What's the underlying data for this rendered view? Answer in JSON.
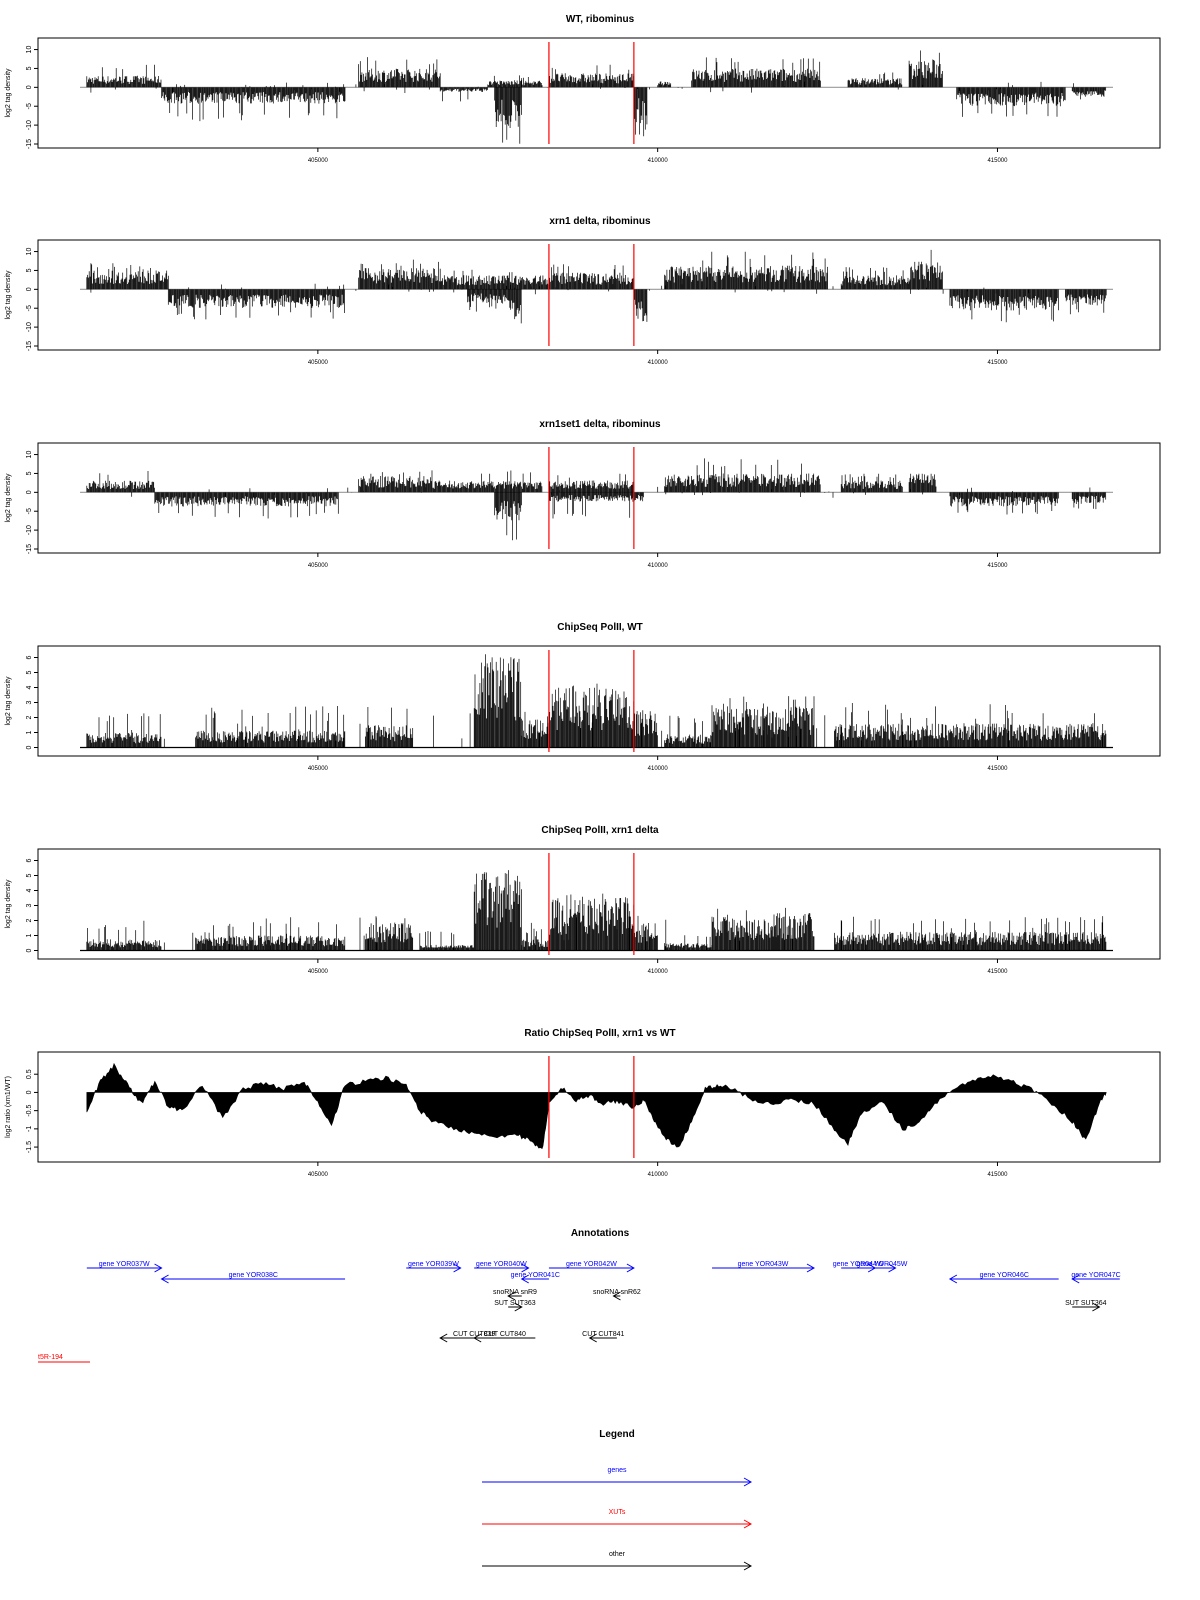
{
  "figure": {
    "region_label": "t5R-194",
    "colors": {
      "gene": "#0000ff",
      "xut": "#ff0000",
      "other": "#000000",
      "marker": "#ff0000",
      "axis": "#000000",
      "baseline": "#999999"
    }
  },
  "chart_data": [
    {
      "type": "bar",
      "title": "WT, ribominus",
      "ylabel": "log2 tag density",
      "xlim": [
        401500,
        416700
      ],
      "ylim": [
        -15,
        12
      ],
      "yticks": [
        10,
        5,
        0,
        -5,
        -10,
        -15
      ],
      "xticks": [
        405000,
        410000,
        415000
      ],
      "markers_x": [
        408400,
        409650
      ],
      "style": "stranded",
      "segments": [
        {
          "x": [
            401600,
            402700
          ],
          "amp": 2.5,
          "peak": 6
        },
        {
          "x": [
            402700,
            405400
          ],
          "amp": -3.5,
          "peak": -9
        },
        {
          "x": [
            405600,
            406800
          ],
          "amp": 4,
          "peak": 8
        },
        {
          "x": [
            406800,
            407500
          ],
          "amp": -1,
          "peak": -4
        },
        {
          "x": [
            407500,
            408000
          ],
          "amp": 1.5,
          "peak": 4
        },
        {
          "x": [
            407600,
            408000
          ],
          "amp": -9,
          "peak": -15
        },
        {
          "x": [
            408000,
            408300
          ],
          "amp": 1.5,
          "peak": 3
        },
        {
          "x": [
            408400,
            409650
          ],
          "amp": 3,
          "peak": 6
        },
        {
          "x": [
            409650,
            409850
          ],
          "amp": -8,
          "peak": -13
        },
        {
          "x": [
            410000,
            410200
          ],
          "amp": 1.5,
          "peak": 4
        },
        {
          "x": [
            410500,
            412400
          ],
          "amp": 4,
          "peak": 8
        },
        {
          "x": [
            412800,
            413600
          ],
          "amp": 2,
          "peak": 4
        },
        {
          "x": [
            413700,
            414200
          ],
          "amp": 6,
          "peak": 10
        },
        {
          "x": [
            414400,
            416000
          ],
          "amp": -4,
          "peak": -9
        },
        {
          "x": [
            416100,
            416600
          ],
          "amp": -2,
          "peak": -4
        }
      ]
    },
    {
      "type": "bar",
      "title": "xrn1 delta, ribominus",
      "ylabel": "log2 tag density",
      "xlim": [
        401500,
        416700
      ],
      "ylim": [
        -15,
        12
      ],
      "yticks": [
        10,
        5,
        0,
        -5,
        -10,
        -15
      ],
      "xticks": [
        405000,
        410000,
        415000
      ],
      "markers_x": [
        408400,
        409650
      ],
      "style": "stranded",
      "segments": [
        {
          "x": [
            401600,
            402800
          ],
          "amp": 4,
          "peak": 7
        },
        {
          "x": [
            402800,
            405400
          ],
          "amp": -4,
          "peak": -8
        },
        {
          "x": [
            405600,
            406800
          ],
          "amp": 4.5,
          "peak": 8
        },
        {
          "x": [
            406800,
            408400
          ],
          "amp": 3,
          "peak": 6
        },
        {
          "x": [
            407200,
            407800
          ],
          "amp": -3,
          "peak": -6
        },
        {
          "x": [
            407800,
            408000
          ],
          "amp": -8,
          "peak": -13
        },
        {
          "x": [
            408400,
            409650
          ],
          "amp": 3.5,
          "peak": 7
        },
        {
          "x": [
            409650,
            409850
          ],
          "amp": -7,
          "peak": -12
        },
        {
          "x": [
            410100,
            412500
          ],
          "amp": 5,
          "peak": 10
        },
        {
          "x": [
            412700,
            413700
          ],
          "amp": 3,
          "peak": 6
        },
        {
          "x": [
            413700,
            414200
          ],
          "amp": 6,
          "peak": 11
        },
        {
          "x": [
            414300,
            415900
          ],
          "amp": -4.5,
          "peak": -9
        },
        {
          "x": [
            416000,
            416600
          ],
          "amp": -3.5,
          "peak": -7
        }
      ]
    },
    {
      "type": "bar",
      "title": "xrn1set1 delta, ribominus",
      "ylabel": "log2 tag density",
      "xlim": [
        401500,
        416700
      ],
      "ylim": [
        -15,
        12
      ],
      "yticks": [
        10,
        5,
        0,
        -5,
        -10,
        -15
      ],
      "xticks": [
        405000,
        410000,
        415000
      ],
      "markers_x": [
        408400,
        409650
      ],
      "style": "stranded",
      "segments": [
        {
          "x": [
            401600,
            402600
          ],
          "amp": 2.5,
          "peak": 6
        },
        {
          "x": [
            402600,
            405300
          ],
          "amp": -3,
          "peak": -7
        },
        {
          "x": [
            405600,
            406700
          ],
          "amp": 3.5,
          "peak": 6
        },
        {
          "x": [
            406700,
            408300
          ],
          "amp": 2.5,
          "peak": 6
        },
        {
          "x": [
            407600,
            408000
          ],
          "amp": -6,
          "peak": -13
        },
        {
          "x": [
            408400,
            409650
          ],
          "amp": 2.5,
          "peak": 5
        },
        {
          "x": [
            408400,
            409800
          ],
          "amp": -2,
          "peak": -7
        },
        {
          "x": [
            410100,
            412400
          ],
          "amp": 4,
          "peak": 9
        },
        {
          "x": [
            412700,
            413600
          ],
          "amp": 2.5,
          "peak": 5
        },
        {
          "x": [
            413700,
            414100
          ],
          "amp": 4,
          "peak": 8
        },
        {
          "x": [
            414300,
            415900
          ],
          "amp": -3,
          "peak": -6
        },
        {
          "x": [
            416100,
            416600
          ],
          "amp": -2.5,
          "peak": -5
        }
      ]
    },
    {
      "type": "bar",
      "title": "ChipSeq PolII, WT",
      "ylabel": "log2 tag density",
      "xlim": [
        401500,
        416700
      ],
      "ylim": [
        -0.3,
        6.5
      ],
      "yticks": [
        0,
        1,
        2,
        3,
        4,
        5,
        6
      ],
      "xticks": [
        405000,
        410000,
        415000
      ],
      "markers_x": [
        408400,
        409650
      ],
      "style": "positive",
      "segments": [
        {
          "x": [
            401600,
            402700
          ],
          "amp": 0.8,
          "peak": 2.5
        },
        {
          "x": [
            403200,
            405400
          ],
          "amp": 0.9,
          "peak": 2.8
        },
        {
          "x": [
            405700,
            406400
          ],
          "amp": 1.2,
          "peak": 2.8
        },
        {
          "x": [
            407300,
            408000
          ],
          "amp": 5,
          "peak": 6.1
        },
        {
          "x": [
            408000,
            408400
          ],
          "amp": 1.5,
          "peak": 2.5
        },
        {
          "x": [
            408400,
            409650
          ],
          "amp": 3.2,
          "peak": 4.3
        },
        {
          "x": [
            409650,
            410000
          ],
          "amp": 2,
          "peak": 3
        },
        {
          "x": [
            410100,
            410800
          ],
          "amp": 0.7,
          "peak": 2
        },
        {
          "x": [
            410800,
            412300
          ],
          "amp": 2.2,
          "peak": 3.5
        },
        {
          "x": [
            412600,
            416600
          ],
          "amp": 1.3,
          "peak": 3
        }
      ]
    },
    {
      "type": "bar",
      "title": "ChipSeq PolII, xrn1 delta",
      "ylabel": "log2 tag density",
      "xlim": [
        401500,
        416700
      ],
      "ylim": [
        -0.3,
        6.5
      ],
      "yticks": [
        0,
        1,
        2,
        3,
        4,
        5,
        6
      ],
      "xticks": [
        405000,
        410000,
        415000
      ],
      "markers_x": [
        408400,
        409650
      ],
      "style": "positive",
      "segments": [
        {
          "x": [
            401600,
            402700
          ],
          "amp": 0.6,
          "peak": 1.8
        },
        {
          "x": [
            403200,
            405400
          ],
          "amp": 0.8,
          "peak": 2
        },
        {
          "x": [
            405700,
            406400
          ],
          "amp": 1.5,
          "peak": 2.7
        },
        {
          "x": [
            406500,
            407300
          ],
          "amp": 0.3,
          "peak": 1.3
        },
        {
          "x": [
            407300,
            408000
          ],
          "amp": 4.3,
          "peak": 5.2
        },
        {
          "x": [
            408000,
            408400
          ],
          "amp": 0.6,
          "peak": 1.5
        },
        {
          "x": [
            408400,
            409650
          ],
          "amp": 2.8,
          "peak": 4
        },
        {
          "x": [
            409650,
            410000
          ],
          "amp": 1.5,
          "peak": 2.5
        },
        {
          "x": [
            410100,
            410800
          ],
          "amp": 0.4,
          "peak": 1.2
        },
        {
          "x": [
            410800,
            412300
          ],
          "amp": 2,
          "peak": 3
        },
        {
          "x": [
            412600,
            416600
          ],
          "amp": 1,
          "peak": 2.3
        }
      ]
    },
    {
      "type": "area",
      "title": "Ratio ChipSeq PolII, xrn1 vs WT",
      "ylabel": "log2 ratio (xrn1/WT)",
      "xlim": [
        401500,
        416700
      ],
      "ylim": [
        -1.8,
        1.0
      ],
      "yticks": [
        0.5,
        0.0,
        -0.5,
        -1.0,
        -1.5
      ],
      "xticks": [
        405000,
        410000,
        415000
      ],
      "markers_x": [
        408400,
        409650
      ],
      "style": "ratio",
      "x": [
        401600,
        401800,
        402000,
        402200,
        402400,
        402600,
        402800,
        403000,
        403300,
        403600,
        403900,
        404200,
        404500,
        404800,
        405000,
        405200,
        405400,
        405700,
        406000,
        406300,
        406500,
        406700,
        407000,
        407300,
        407600,
        407900,
        408100,
        408300,
        408400,
        408600,
        408800,
        409000,
        409200,
        409400,
        409650,
        409800,
        409950,
        410100,
        410300,
        410500,
        410700,
        410900,
        411100,
        411400,
        411700,
        412000,
        412300,
        412600,
        412800,
        413000,
        413300,
        413600,
        413800,
        414000,
        414300,
        414600,
        414900,
        415200,
        415500,
        415800,
        416100,
        416300,
        416500,
        416600
      ],
      "y": [
        -0.5,
        0.3,
        0.75,
        0.2,
        -0.3,
        0.3,
        -0.4,
        -0.5,
        0.2,
        -0.7,
        0.1,
        0.25,
        0.1,
        0.3,
        -0.3,
        -0.9,
        0.2,
        0.3,
        0.4,
        0.2,
        -0.5,
        -0.8,
        -1.0,
        -1.1,
        -1.2,
        -1.15,
        -1.3,
        -1.6,
        -0.3,
        0.1,
        -0.2,
        -0.1,
        -0.3,
        -0.25,
        -0.4,
        -0.2,
        -0.8,
        -1.2,
        -1.55,
        -0.8,
        0.1,
        0.2,
        0.1,
        -0.2,
        -0.3,
        -0.2,
        -0.3,
        -1.0,
        -1.4,
        -0.6,
        -0.2,
        -1.0,
        -0.9,
        -0.5,
        0.05,
        0.3,
        0.45,
        0.3,
        0.1,
        -0.3,
        -0.8,
        -1.3,
        -0.3,
        0.0
      ]
    }
  ],
  "annotations": {
    "title": "Annotations",
    "items": [
      {
        "label": "gene YOR037W",
        "kind": "gene",
        "dir": "right",
        "row": 1,
        "x0": 401600,
        "x1": 402700
      },
      {
        "label": "gene YOR038C",
        "kind": "gene",
        "dir": "left",
        "row": 2,
        "x0": 402700,
        "x1": 405400
      },
      {
        "label": "gene YOR039W",
        "kind": "gene",
        "dir": "right",
        "row": 1,
        "x0": 406300,
        "x1": 407100
      },
      {
        "label": "gene YOR040W",
        "kind": "gene",
        "dir": "right",
        "row": 1,
        "x0": 407300,
        "x1": 408100
      },
      {
        "label": "gene YOR041C",
        "kind": "gene",
        "dir": "left",
        "row": 2,
        "x0": 408000,
        "x1": 408400
      },
      {
        "label": "gene YOR042W",
        "kind": "gene",
        "dir": "right",
        "row": 1,
        "x0": 408400,
        "x1": 409650
      },
      {
        "label": "gene YOR043W",
        "kind": "gene",
        "dir": "right",
        "row": 1,
        "x0": 410800,
        "x1": 412300
      },
      {
        "label": "gene YOR044W",
        "kind": "gene",
        "dir": "right",
        "row": 1,
        "x0": 412700,
        "x1": 413200
      },
      {
        "label": "gene YOR045W",
        "kind": "gene",
        "dir": "right",
        "row": 1,
        "x0": 413100,
        "x1": 413500
      },
      {
        "label": "gene YOR046C",
        "kind": "gene",
        "dir": "left",
        "row": 2,
        "x0": 414300,
        "x1": 415900
      },
      {
        "label": "gene YOR047C",
        "kind": "gene",
        "dir": "left",
        "row": 2,
        "x0": 416100,
        "x1": 416800
      },
      {
        "label": "snoRNA snR9",
        "kind": "other",
        "dir": "left",
        "row": 3,
        "x0": 407800,
        "x1": 408000
      },
      {
        "label": "SUT SUT363",
        "kind": "other",
        "dir": "right",
        "row": 4,
        "x0": 407800,
        "x1": 408000
      },
      {
        "label": "snoRNA snR62",
        "kind": "other",
        "dir": "left",
        "row": 3,
        "x0": 409350,
        "x1": 409450
      },
      {
        "label": "SUT SUT364",
        "kind": "other",
        "dir": "right",
        "row": 4,
        "x0": 416100,
        "x1": 416500
      },
      {
        "label": "CUT CUT839",
        "kind": "other",
        "dir": "left",
        "row": 6,
        "x0": 406800,
        "x1": 407800
      },
      {
        "label": "CUT CUT840",
        "kind": "other",
        "dir": "left",
        "row": 6,
        "x0": 407300,
        "x1": 408200
      },
      {
        "label": "CUT CUT841",
        "kind": "other",
        "dir": "left",
        "row": 6,
        "x0": 409000,
        "x1": 409400
      }
    ]
  },
  "legend": {
    "title": "Legend",
    "items": [
      {
        "label": "genes",
        "kind": "gene"
      },
      {
        "label": "XUTs",
        "kind": "xut"
      },
      {
        "label": "other",
        "kind": "other"
      }
    ]
  }
}
